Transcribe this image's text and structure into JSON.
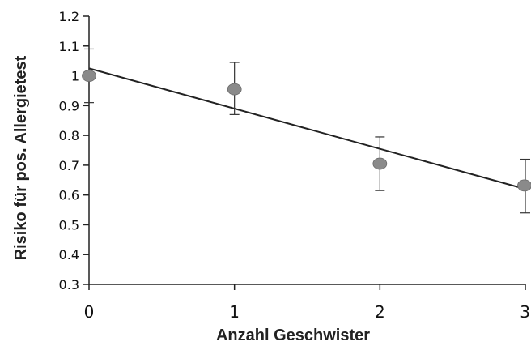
{
  "chart_data": {
    "type": "scatter",
    "title": "",
    "xlabel": "Anzahl Geschwister",
    "ylabel": "Risiko für pos. Allergietest",
    "xlim": [
      0,
      3
    ],
    "ylim": [
      0.3,
      1.2
    ],
    "x_ticks": [
      "0",
      "1",
      "2",
      "3"
    ],
    "y_ticks": [
      "0.3",
      "0.4",
      "0.5",
      "0.6",
      "0.7",
      "0.8",
      "0.9",
      "1",
      "1.1",
      "1.2"
    ],
    "grid": false,
    "legend": "none",
    "marker_color": "#8a8a8a",
    "line_color": "#222222",
    "points": [
      {
        "x": 0,
        "y": 1.0,
        "err_low": 0.91,
        "err_high": 1.09
      },
      {
        "x": 1,
        "y": 0.955,
        "err_low": 0.87,
        "err_high": 1.045
      },
      {
        "x": 2,
        "y": 0.705,
        "err_low": 0.615,
        "err_high": 0.795
      },
      {
        "x": 3,
        "y": 0.632,
        "err_low": 0.54,
        "err_high": 0.72
      }
    ],
    "trend_line": {
      "x": [
        0,
        3
      ],
      "y": [
        1.025,
        0.62
      ]
    }
  }
}
